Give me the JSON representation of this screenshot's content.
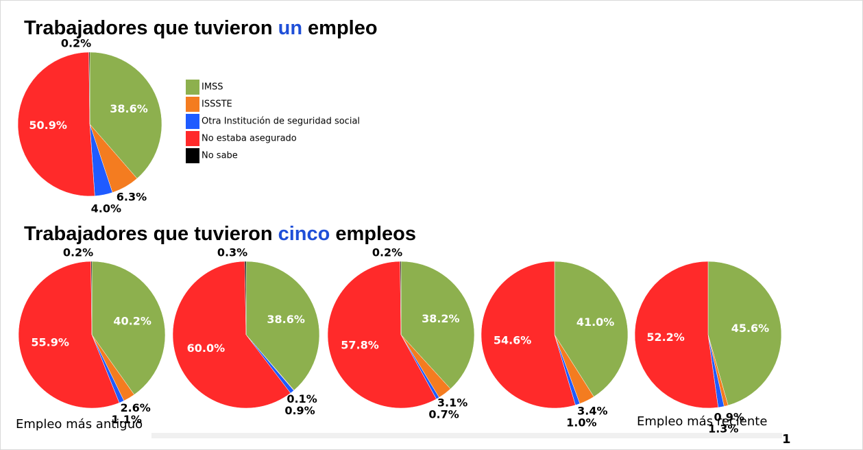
{
  "headings": [
    [
      "Trabajadores que tuvieron",
      "un",
      "empleo"
    ],
    [
      "Trabajadores que tuvieron",
      "cinco",
      "empleos"
    ]
  ],
  "captions": [
    "Empleo más antiguo",
    "Empleo más reciente"
  ],
  "page_number": "1",
  "chart_data": [
    {
      "type": "pie",
      "categories": [
        "IMSS",
        "ISSSTE",
        "Otra Institución de seguridad social",
        "No estaba asegurado",
        "No sabe"
      ],
      "colors": [
        "#8db04e",
        "#f47c20",
        "#1f5bff",
        "#ff2a2a",
        "#000000"
      ],
      "values": [
        38.6,
        6.3,
        4.0,
        50.9,
        0.2
      ],
      "value_labels": [
        "38.6%",
        "6.3%",
        "4.0%",
        "50.9%",
        "0.2%"
      ],
      "legend": true
    },
    {
      "type": "pie",
      "values": [
        40.2,
        2.6,
        1.1,
        55.9,
        0.2
      ],
      "value_labels": [
        "40.2%",
        "2.6%",
        "1.1%",
        "55.9%",
        "0.2%"
      ]
    },
    {
      "type": "pie",
      "values": [
        38.6,
        0.1,
        0.9,
        60.0,
        0.3
      ],
      "value_labels": [
        "38.6%",
        "0.1%",
        "0.9%",
        "60.0%",
        "0.3%"
      ]
    },
    {
      "type": "pie",
      "values": [
        38.2,
        3.1,
        0.7,
        57.8,
        0.2
      ],
      "value_labels": [
        "38.2%",
        "3.1%",
        "0.7%",
        "57.8%",
        "0.2%"
      ]
    },
    {
      "type": "pie",
      "values": [
        41.0,
        3.4,
        1.0,
        54.6,
        null
      ],
      "value_labels": [
        "41.0%",
        "3.4%",
        "1.0%",
        "54.6%",
        null
      ]
    },
    {
      "type": "pie",
      "values": [
        45.6,
        0.9,
        1.3,
        52.2,
        null
      ],
      "value_labels": [
        "45.6%",
        "0.9%",
        "1.3%",
        "52.2%",
        null
      ]
    }
  ]
}
